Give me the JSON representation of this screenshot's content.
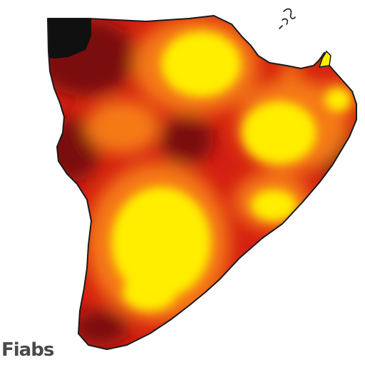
{
  "map": {
    "caption": "Fiabs",
    "colors": {
      "outline": "#1a1a1a",
      "dark_red": "#7a0a0a",
      "red": "#d42012",
      "orange": "#f57a12",
      "yellow": "#ffee00",
      "black": "#101010"
    }
  }
}
